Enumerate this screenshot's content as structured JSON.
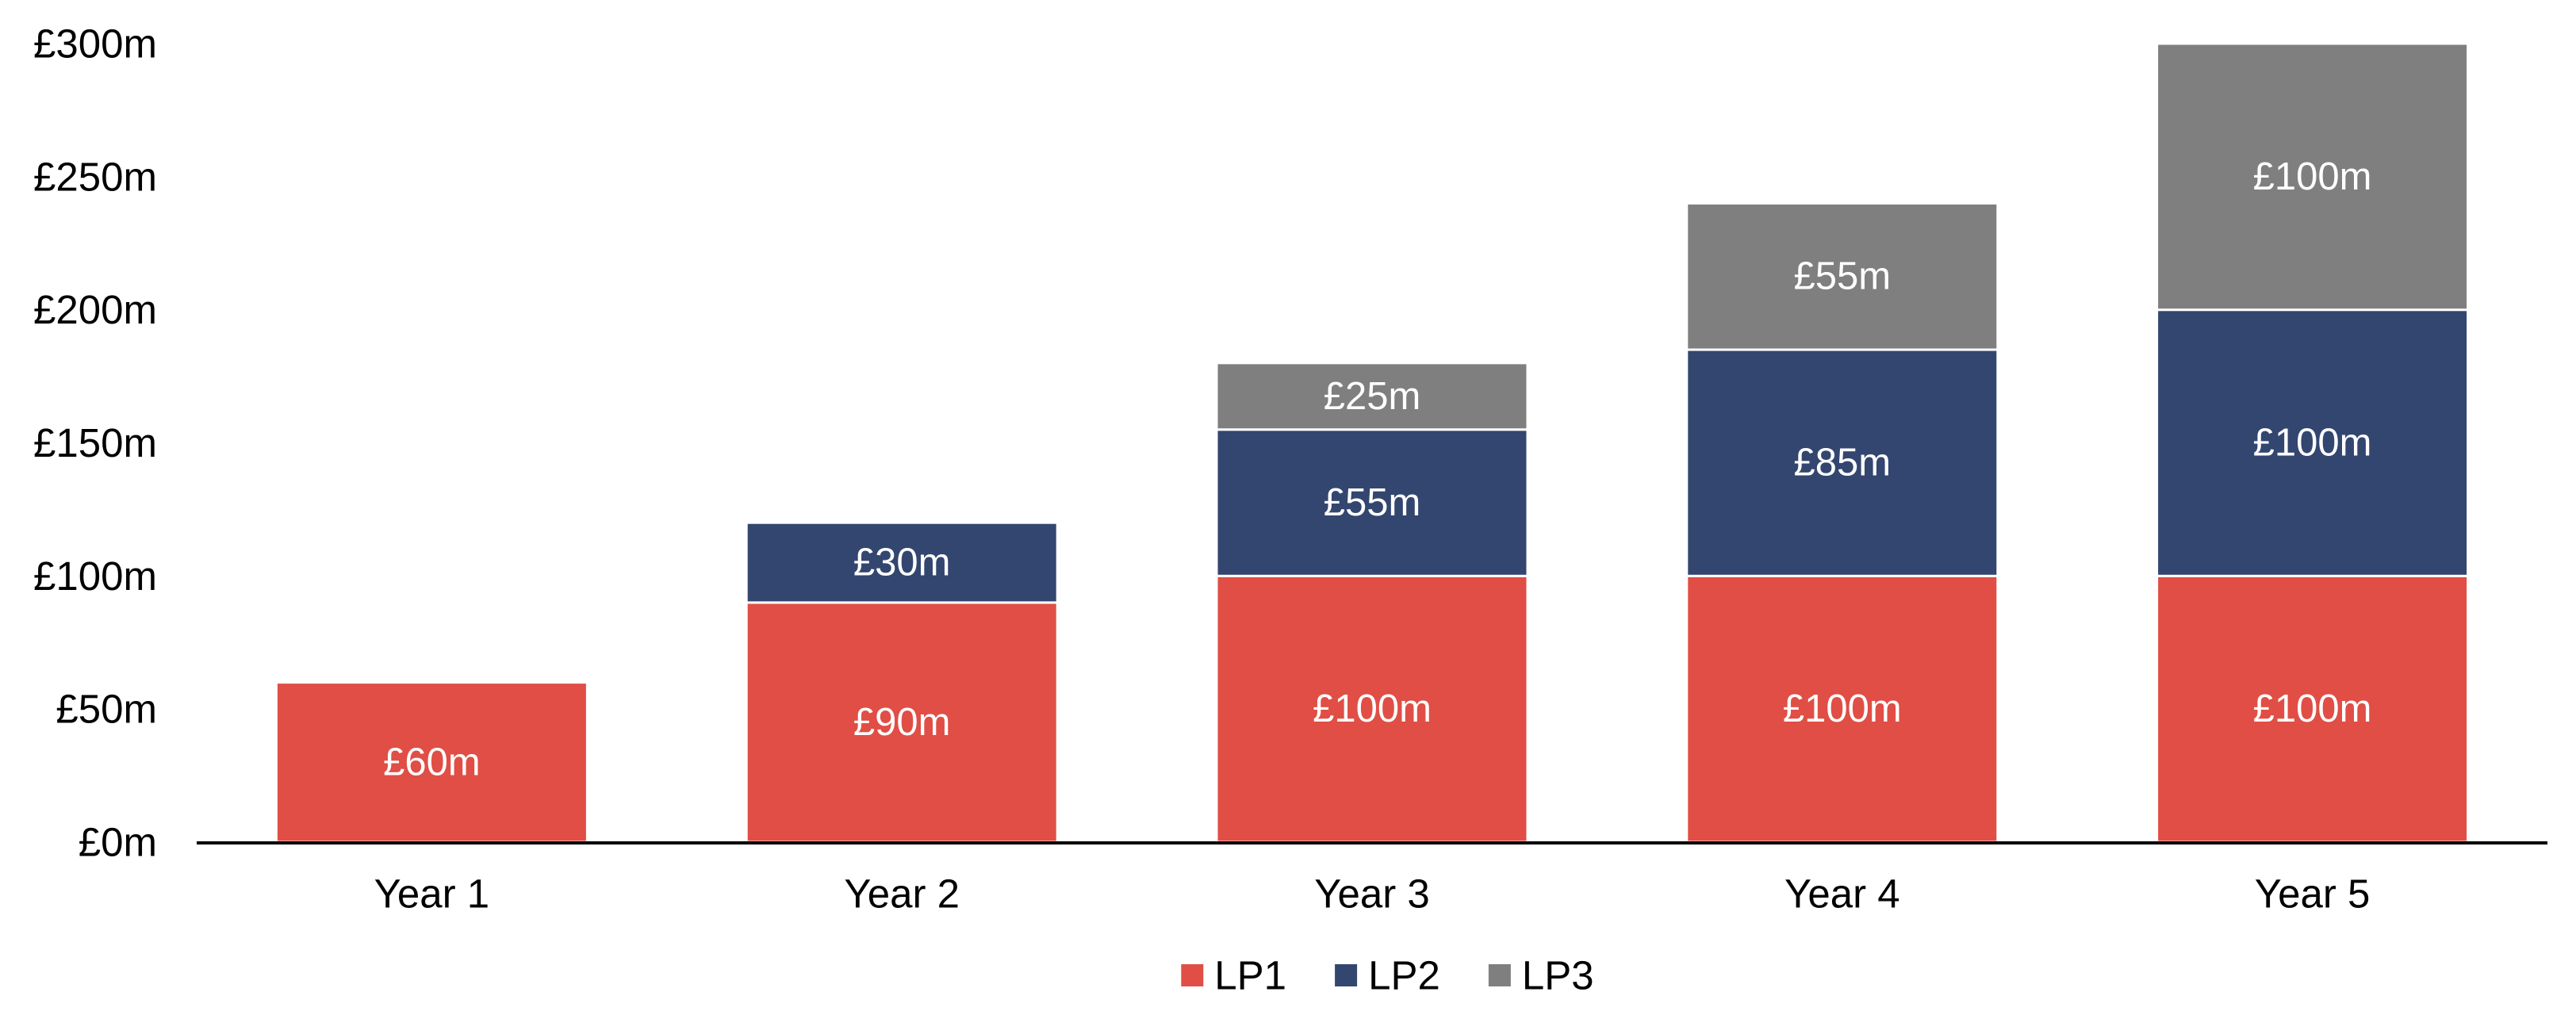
{
  "chart_data": {
    "type": "bar",
    "stacked": true,
    "categories": [
      "Year 1",
      "Year 2",
      "Year 3",
      "Year 4",
      "Year 5"
    ],
    "series": [
      {
        "name": "LP1",
        "color": "#e04e45",
        "values": [
          60,
          90,
          100,
          100,
          100
        ],
        "labels": [
          "£60m",
          "£90m",
          "£100m",
          "£100m",
          "£100m"
        ]
      },
      {
        "name": "LP2",
        "color": "#334670",
        "values": [
          0,
          30,
          55,
          85,
          100
        ],
        "labels": [
          "",
          "£30m",
          "£55m",
          "£85m",
          "£100m"
        ]
      },
      {
        "name": "LP3",
        "color": "#7f7f7f",
        "values": [
          0,
          0,
          25,
          55,
          100
        ],
        "labels": [
          "",
          "",
          "£25m",
          "£55m",
          "£100m"
        ]
      }
    ],
    "ylim": [
      0,
      300
    ],
    "yticks": [
      0,
      50,
      100,
      150,
      200,
      250,
      300
    ],
    "ytick_labels": [
      "£0m",
      "£50m",
      "£100m",
      "£150m",
      "£200m",
      "£250m",
      "£300m"
    ],
    "title": "",
    "xlabel": "",
    "ylabel": "",
    "grid": false,
    "legend_position": "bottom-center",
    "data_label_color": "#ffffff",
    "text_color": "#000000",
    "axis_color": "#000000"
  }
}
